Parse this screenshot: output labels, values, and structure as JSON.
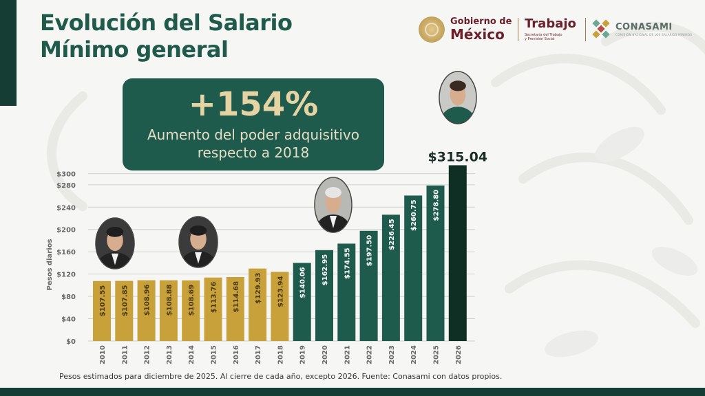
{
  "title": {
    "line1": "Evolución del Salario",
    "line2": "Mínimo general"
  },
  "logos": {
    "gobierno_line1": "Gobierno de",
    "gobierno_line2": "México",
    "trabajo_title": "Trabajo",
    "trabajo_sub1": "Secretaría del Trabajo",
    "trabajo_sub2": "y Previsión Social",
    "conasami_title": "CONASAMI",
    "conasami_sub": "COMISIÓN NACIONAL DE LOS SALARIOS MÍNIMOS"
  },
  "callout": {
    "value": "+154%",
    "line1": "Aumento del poder adquisitivo",
    "line2": "respecto a 2018"
  },
  "footnote": "Pesos estimados para diciembre de 2025. Al cierre de cada año, excepto 2026. Fuente: Conasami con datos propios.",
  "colors": {
    "gold": "#c9a13a",
    "green": "#1e5b4d",
    "dark_green": "#0f2e24",
    "title_green": "#1f5a4a"
  },
  "chart_data": {
    "type": "bar",
    "categories": [
      "2010",
      "2011",
      "2012",
      "2013",
      "2014",
      "2015",
      "2016",
      "2017",
      "2018",
      "2019",
      "2020",
      "2021",
      "2022",
      "2023",
      "2024",
      "2025",
      "2026"
    ],
    "values": [
      107.55,
      107.85,
      108.96,
      108.88,
      108.69,
      113.76,
      114.68,
      129.93,
      123.94,
      140.06,
      162.95,
      174.55,
      197.5,
      226.45,
      260.75,
      278.8,
      315.04
    ],
    "labels": [
      "$107.55",
      "$107.85",
      "$108.96",
      "$108.88",
      "$108.69",
      "$113.76",
      "$114.68",
      "$129.93",
      "$123.94",
      "$140.06",
      "$162.95",
      "$174.55",
      "$197.50",
      "$226.45",
      "$260.75",
      "$278.80",
      "$315.04"
    ],
    "colors": [
      "#c9a13a",
      "#c9a13a",
      "#c9a13a",
      "#c9a13a",
      "#c9a13a",
      "#c9a13a",
      "#c9a13a",
      "#c9a13a",
      "#c9a13a",
      "#1e5b4d",
      "#1e5b4d",
      "#1e5b4d",
      "#1e5b4d",
      "#1e5b4d",
      "#1e5b4d",
      "#1e5b4d",
      "#0f2e24"
    ],
    "ylabel": "Pesos diarios",
    "yticks": [
      "$0",
      "$40",
      "$80",
      "$120",
      "$160",
      "$200",
      "$240",
      "$280",
      "$300"
    ],
    "ytick_values": [
      0,
      40,
      80,
      120,
      160,
      200,
      240,
      280,
      300
    ],
    "ylim": [
      0,
      300
    ],
    "grid": true,
    "portraits": [
      {
        "year": "2010",
        "name": "felipe-calderon-portrait"
      },
      {
        "year": "2014",
        "name": "enrique-pena-nieto-portrait"
      },
      {
        "year": "2019",
        "name": "andres-manuel-lopez-obrador-portrait"
      },
      {
        "year": "2025",
        "name": "claudia-sheinbaum-portrait"
      }
    ]
  }
}
